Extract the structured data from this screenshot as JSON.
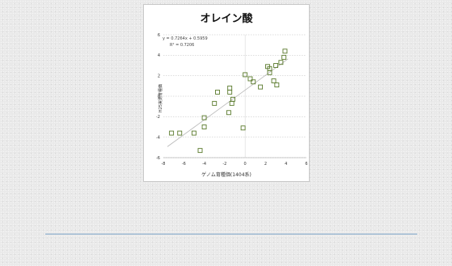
{
  "chart_data": {
    "type": "scatter",
    "title": "オレイン酸",
    "xlabel": "ゲノム育種価(1404系)",
    "ylabel": "H25実測育種価",
    "xlim": [
      -8,
      6
    ],
    "ylim": [
      -6,
      6
    ],
    "xticks": [
      -8,
      -6,
      -4,
      -2,
      0,
      2,
      4,
      6
    ],
    "yticks": [
      -6,
      -4,
      -2,
      0,
      2,
      4,
      6
    ],
    "grid": "horizontal",
    "marker_color": "#5a7a2c",
    "trendline": {
      "type": "linear",
      "slope": 0.7264,
      "intercept": 0.5959,
      "equation": "y = 0.7264x + 0.5959",
      "r_squared": "R² = 0.7206",
      "color": "#b8b8b8"
    },
    "points": [
      {
        "x": -7.2,
        "y": -3.6
      },
      {
        "x": -6.4,
        "y": -3.6
      },
      {
        "x": -5.0,
        "y": -3.6
      },
      {
        "x": -4.4,
        "y": -5.3
      },
      {
        "x": -4.0,
        "y": -3.0
      },
      {
        "x": -4.0,
        "y": -2.1
      },
      {
        "x": -3.0,
        "y": -0.7
      },
      {
        "x": -2.7,
        "y": 0.4
      },
      {
        "x": -1.5,
        "y": 0.8
      },
      {
        "x": -1.5,
        "y": 0.4
      },
      {
        "x": -1.6,
        "y": -1.6
      },
      {
        "x": -1.2,
        "y": -0.3
      },
      {
        "x": -1.3,
        "y": -0.7
      },
      {
        "x": -0.2,
        "y": -3.1
      },
      {
        "x": 0.0,
        "y": 2.1
      },
      {
        "x": 0.5,
        "y": 1.7
      },
      {
        "x": 0.8,
        "y": 1.4
      },
      {
        "x": 1.5,
        "y": 0.9
      },
      {
        "x": 2.2,
        "y": 2.9
      },
      {
        "x": 2.4,
        "y": 2.3
      },
      {
        "x": 2.4,
        "y": 2.7
      },
      {
        "x": 2.8,
        "y": 1.5
      },
      {
        "x": 3.0,
        "y": 3.0
      },
      {
        "x": 3.1,
        "y": 1.1
      },
      {
        "x": 3.5,
        "y": 3.3
      },
      {
        "x": 3.8,
        "y": 3.8
      },
      {
        "x": 3.9,
        "y": 4.4
      }
    ]
  }
}
